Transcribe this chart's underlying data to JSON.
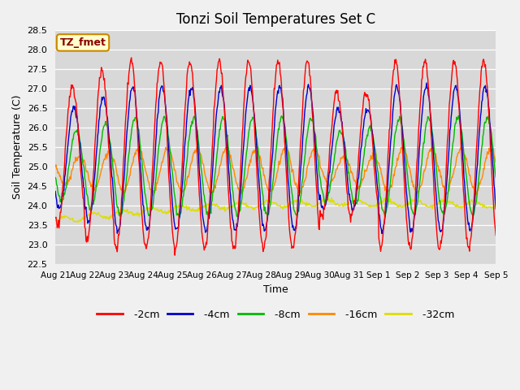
{
  "title": "Tonzi Soil Temperatures Set C",
  "xlabel": "Time",
  "ylabel": "Soil Temperature (C)",
  "ylim": [
    22.5,
    28.5
  ],
  "yticks": [
    22.5,
    23.0,
    23.5,
    24.0,
    24.5,
    25.0,
    25.5,
    26.0,
    26.5,
    27.0,
    27.5,
    28.0,
    28.5
  ],
  "xtick_labels": [
    "Aug 21",
    "Aug 22",
    "Aug 23",
    "Aug 24",
    "Aug 25",
    "Aug 26",
    "Aug 27",
    "Aug 28",
    "Aug 29",
    "Aug 30",
    "Aug 31",
    "Sep 1",
    "Sep 2",
    "Sep 3",
    "Sep 4",
    "Sep 5"
  ],
  "colors": {
    "-2cm": "#ff0000",
    "-4cm": "#0000cc",
    "-8cm": "#00bb00",
    "-16cm": "#ff8800",
    "-32cm": "#dddd00"
  },
  "legend_label": "TZ_fmet",
  "fig_bg": "#f0f0f0",
  "plot_bg": "#d8d8d8"
}
